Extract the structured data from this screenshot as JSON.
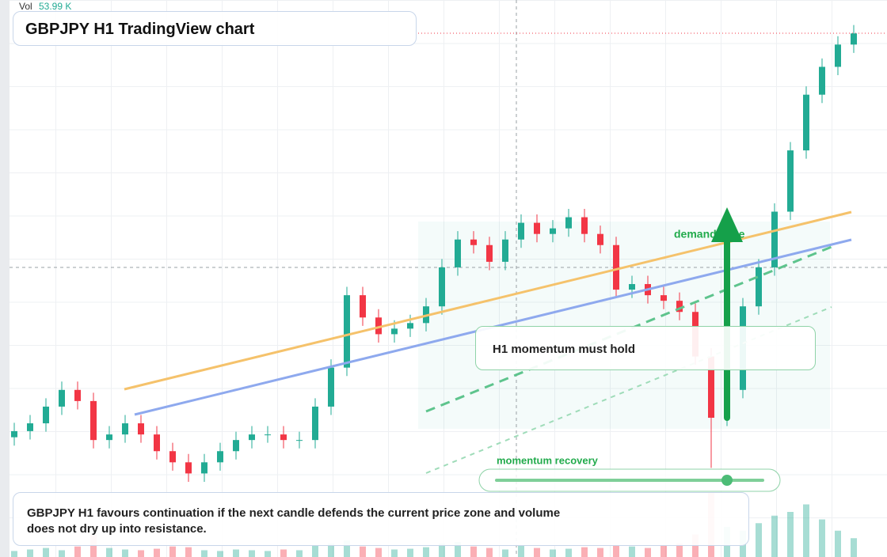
{
  "chart_data": {
    "type": "candlestick",
    "title": "GBPJPY H1 TradingView chart",
    "volume_label": "Vol",
    "volume_value": "53.99 K",
    "up_color": "#22ab94",
    "down_color": "#f23645",
    "ylim": [
      0,
      100
    ],
    "volume_lim": [
      0,
      100
    ],
    "open": [
      21.5,
      22.6,
      24,
      27,
      30,
      28,
      21,
      22,
      24,
      22,
      19,
      17,
      15,
      17,
      19,
      21,
      22,
      22,
      21,
      21,
      27,
      34,
      47,
      43,
      40,
      41,
      42,
      45,
      52,
      57,
      56,
      53,
      57,
      60,
      58,
      59,
      61,
      58,
      56,
      48,
      49,
      47,
      46,
      44,
      36,
      25,
      30,
      45,
      52,
      62,
      73,
      83,
      88,
      92
    ],
    "high": [
      24.1,
      25.5,
      28.5,
      31.5,
      31.5,
      29.5,
      23.5,
      25.5,
      25.5,
      23.5,
      20.5,
      18.5,
      18.5,
      20.5,
      22.5,
      23.5,
      23.5,
      23.5,
      22.5,
      28.5,
      35.5,
      48.5,
      48.5,
      44.5,
      42.5,
      43.5,
      46.5,
      53.5,
      58.5,
      58.5,
      57.5,
      58.5,
      61.5,
      61.5,
      60.5,
      62.5,
      62.5,
      59.5,
      57.5,
      50.5,
      50.5,
      48.5,
      47.5,
      45.5,
      37.5,
      31.5,
      46.5,
      53.5,
      63.5,
      74.5,
      84.5,
      89.5,
      93.5,
      95.5
    ],
    "low": [
      20,
      21.1,
      22.5,
      25.5,
      26.5,
      19.5,
      19.5,
      20.5,
      20.5,
      17.5,
      15.5,
      13.5,
      13.5,
      15.5,
      17.5,
      19.5,
      20.5,
      19.5,
      19.5,
      19.5,
      25.5,
      32.5,
      41.5,
      38.5,
      38.5,
      39.5,
      40.5,
      43.5,
      50.5,
      54.5,
      51.5,
      51.5,
      55.5,
      56.5,
      56.5,
      57.5,
      56.5,
      54.5,
      46.5,
      46.5,
      45.5,
      44.5,
      42.5,
      34.5,
      16,
      23.5,
      28.5,
      43.5,
      50.5,
      60.5,
      71.5,
      81.5,
      86.5,
      90.5
    ],
    "close": [
      22.6,
      24,
      27,
      30,
      28,
      21,
      22,
      24,
      22,
      19,
      17,
      15,
      17,
      19,
      21,
      22,
      22,
      21,
      21,
      27,
      34,
      47,
      43,
      40,
      41,
      42,
      45,
      52,
      57,
      56,
      53,
      57,
      60,
      58,
      59,
      61,
      58,
      56,
      48,
      49,
      47,
      46,
      44,
      36,
      25,
      30,
      45,
      52,
      62,
      73,
      83,
      88,
      92,
      94
    ],
    "volume": [
      8,
      10,
      12,
      9,
      14,
      30,
      12,
      10,
      9,
      11,
      14,
      13,
      9,
      8,
      10,
      9,
      8,
      10,
      9,
      15,
      18,
      22,
      14,
      12,
      10,
      11,
      13,
      18,
      20,
      14,
      12,
      10,
      15,
      12,
      10,
      11,
      13,
      12,
      16,
      14,
      12,
      15,
      18,
      30,
      85,
      40,
      35,
      45,
      55,
      60,
      70,
      50,
      35,
      25
    ]
  },
  "annotations": {
    "zone_label": "demand zone",
    "box_label": "H1 momentum must hold",
    "slider_label": "momentum recovery",
    "note": "GBPJPY H1 favours continuation if the next candle defends the current price zone and volume does not dry up into resistance."
  }
}
